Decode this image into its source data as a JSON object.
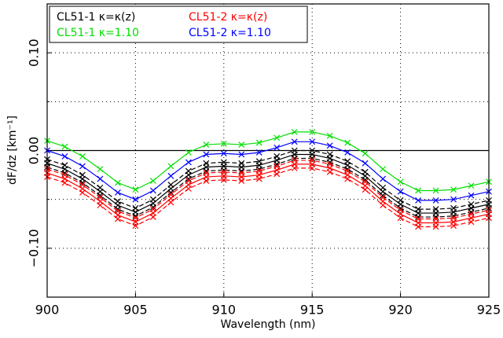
{
  "chart_data": {
    "type": "line",
    "xlabel": "Wavelength (nm)",
    "ylabel": "dF/dz [km⁻¹]",
    "x": [
      900,
      901,
      902,
      903,
      904,
      905,
      906,
      907,
      908,
      909,
      910,
      911,
      912,
      913,
      914,
      915,
      916,
      917,
      918,
      919,
      920,
      921,
      922,
      923,
      924,
      925
    ],
    "xlim": [
      900,
      925
    ],
    "xticks": [
      900,
      905,
      910,
      915,
      920,
      925
    ],
    "ylim": [
      -0.15,
      0.15
    ],
    "yticks": [
      {
        "value": -0.1,
        "label": "−0.10"
      },
      {
        "value": 0,
        "label": "0.00"
      },
      {
        "value": 0.1,
        "label": "0.10"
      }
    ],
    "minor_yticks": [
      -0.05,
      0.05
    ],
    "grid": true,
    "reference_line": 0,
    "legend": "upper left",
    "series": [
      {
        "name": "CL51-1  κ=κ(z)",
        "color": "#000000",
        "values": [
          -0.013,
          -0.019,
          -0.029,
          -0.042,
          -0.056,
          -0.063,
          -0.054,
          -0.039,
          -0.025,
          -0.017,
          -0.016,
          -0.017,
          -0.015,
          -0.01,
          -0.004,
          -0.004,
          -0.008,
          -0.015,
          -0.026,
          -0.042,
          -0.055,
          -0.064,
          -0.064,
          -0.063,
          -0.059,
          -0.055
        ],
        "lower": [
          -0.017,
          -0.023,
          -0.033,
          -0.046,
          -0.06,
          -0.067,
          -0.058,
          -0.043,
          -0.029,
          -0.021,
          -0.02,
          -0.021,
          -0.019,
          -0.014,
          -0.008,
          -0.008,
          -0.012,
          -0.019,
          -0.03,
          -0.046,
          -0.059,
          -0.068,
          -0.068,
          -0.067,
          -0.063,
          -0.059
        ],
        "upper": [
          -0.009,
          -0.015,
          -0.025,
          -0.038,
          -0.052,
          -0.059,
          -0.05,
          -0.035,
          -0.021,
          -0.013,
          -0.012,
          -0.013,
          -0.011,
          -0.006,
          0.0,
          0.0,
          -0.004,
          -0.011,
          -0.022,
          -0.038,
          -0.051,
          -0.06,
          -0.06,
          -0.059,
          -0.055,
          -0.051
        ]
      },
      {
        "name": "CL51-2  κ=κ(z)",
        "color": "#ff0000",
        "values": [
          -0.023,
          -0.029,
          -0.039,
          -0.052,
          -0.066,
          -0.073,
          -0.064,
          -0.049,
          -0.035,
          -0.027,
          -0.026,
          -0.027,
          -0.025,
          -0.02,
          -0.014,
          -0.014,
          -0.018,
          -0.025,
          -0.036,
          -0.052,
          -0.065,
          -0.074,
          -0.074,
          -0.073,
          -0.069,
          -0.065
        ],
        "lower": [
          -0.027,
          -0.033,
          -0.043,
          -0.056,
          -0.07,
          -0.077,
          -0.068,
          -0.053,
          -0.039,
          -0.031,
          -0.03,
          -0.031,
          -0.029,
          -0.024,
          -0.018,
          -0.018,
          -0.022,
          -0.029,
          -0.04,
          -0.056,
          -0.069,
          -0.078,
          -0.078,
          -0.077,
          -0.073,
          -0.069
        ],
        "upper": [
          -0.019,
          -0.025,
          -0.035,
          -0.048,
          -0.062,
          -0.069,
          -0.06,
          -0.045,
          -0.031,
          -0.023,
          -0.022,
          -0.023,
          -0.021,
          -0.016,
          -0.01,
          -0.01,
          -0.014,
          -0.021,
          -0.032,
          -0.048,
          -0.061,
          -0.07,
          -0.07,
          -0.069,
          -0.065,
          -0.061
        ]
      },
      {
        "name": "CL51-1  κ=1.10",
        "color": "#00e000",
        "values": [
          0.01,
          0.004,
          -0.006,
          -0.019,
          -0.033,
          -0.04,
          -0.031,
          -0.016,
          -0.002,
          0.006,
          0.007,
          0.006,
          0.008,
          0.013,
          0.019,
          0.019,
          0.015,
          0.008,
          -0.003,
          -0.019,
          -0.032,
          -0.041,
          -0.041,
          -0.04,
          -0.036,
          -0.032
        ]
      },
      {
        "name": "CL51-2  κ=1.10",
        "color": "#0000ff",
        "values": [
          0.0,
          -0.006,
          -0.016,
          -0.029,
          -0.043,
          -0.05,
          -0.041,
          -0.026,
          -0.012,
          -0.004,
          -0.003,
          -0.004,
          -0.002,
          0.003,
          0.009,
          0.009,
          0.005,
          -0.002,
          -0.013,
          -0.029,
          -0.042,
          -0.051,
          -0.051,
          -0.05,
          -0.046,
          -0.042
        ]
      }
    ]
  }
}
